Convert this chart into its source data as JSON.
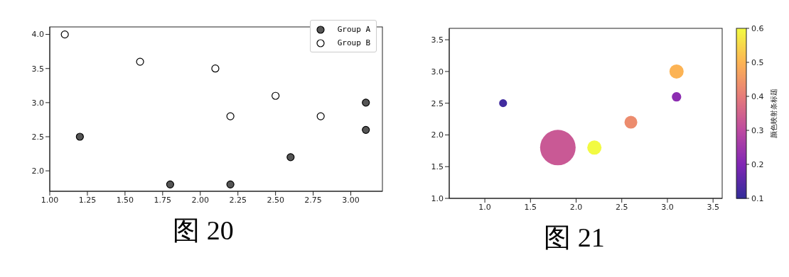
{
  "chart_data": [
    {
      "type": "scatter",
      "xlim": [
        1.0,
        3.21
      ],
      "ylim": [
        1.7,
        4.11
      ],
      "xticks": [
        {
          "value": 1.0,
          "label": "1.00"
        },
        {
          "value": 1.25,
          "label": "1.25"
        },
        {
          "value": 1.5,
          "label": "1.50"
        },
        {
          "value": 1.75,
          "label": "1.75"
        },
        {
          "value": 2.0,
          "label": "2.00"
        },
        {
          "value": 2.25,
          "label": "2.25"
        },
        {
          "value": 2.5,
          "label": "2.50"
        },
        {
          "value": 2.75,
          "label": "2.75"
        },
        {
          "value": 3.0,
          "label": "3.00"
        }
      ],
      "yticks": [
        {
          "value": 2.0,
          "label": "2.0"
        },
        2.5,
        {
          "value": 3.0,
          "label": "3.0"
        },
        3.5,
        {
          "value": 4.0,
          "label": "4.0"
        }
      ],
      "marker": "circle",
      "legend": "top right",
      "grid": false,
      "series": [
        {
          "name": "Group A",
          "color": "#555555",
          "x": [
            1.2,
            1.8,
            2.2,
            2.6,
            3.1,
            3.1
          ],
          "values": [
            2.5,
            1.8,
            1.8,
            2.2,
            3.0,
            2.6
          ]
        },
        {
          "name": "Group B",
          "color": "#ffffff",
          "x": [
            1.1,
            1.6,
            2.1,
            2.2,
            2.5,
            2.8
          ],
          "values": [
            4.0,
            3.6,
            3.5,
            2.8,
            3.1,
            2.8
          ]
        }
      ],
      "annotations": [
        "图 20"
      ]
    },
    {
      "type": "bubble",
      "xlim": [
        0.61,
        3.6
      ],
      "ylim": [
        1.0,
        3.68
      ],
      "xticks": [
        {
          "value": 1.0,
          "label": "1.0"
        },
        1.5,
        {
          "value": 2.0,
          "label": "2.0"
        },
        2.5,
        {
          "value": 3.0,
          "label": "3.0"
        },
        3.5
      ],
      "yticks": [
        {
          "value": 1.0,
          "label": "1.0"
        },
        1.5,
        {
          "value": 2.0,
          "label": "2.0"
        },
        2.5,
        {
          "value": 3.0,
          "label": "3.0"
        },
        3.5
      ],
      "x": [
        1.2,
        1.8,
        2.2,
        2.6,
        3.1,
        3.1
      ],
      "values": [
        2.5,
        1.8,
        1.8,
        2.2,
        3.0,
        2.6
      ],
      "sizes": [
        0.05,
        1,
        0.16,
        0.13,
        0.16,
        0.07
      ],
      "cvalues": [
        0.12,
        0.33,
        0.6,
        0.43,
        0.5,
        0.22
      ],
      "clim": [
        0.1,
        0.6
      ],
      "cticks": [
        0.1,
        0.2,
        0.3,
        0.4,
        0.5,
        0.6
      ],
      "clabel": "颜色映射条标题",
      "grid": false,
      "annotations": [
        "图 21"
      ]
    }
  ]
}
